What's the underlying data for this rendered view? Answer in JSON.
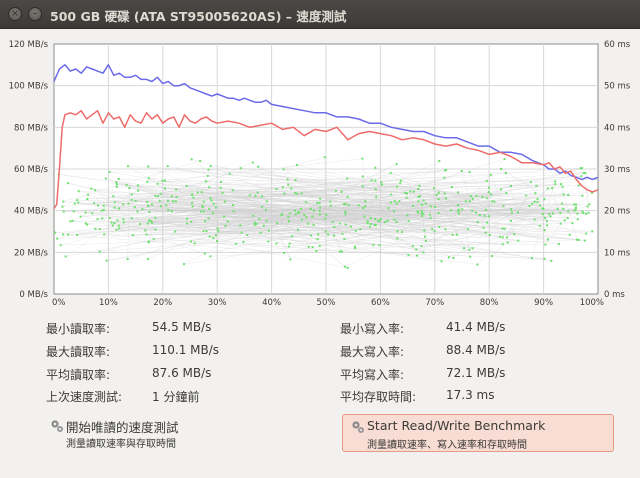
{
  "window": {
    "title": "500 GB 硬碟 (ATA ST95005620AS) – 速度測試"
  },
  "chart_data": {
    "type": "line",
    "x_ticks": [
      "0%",
      "10%",
      "20%",
      "30%",
      "40%",
      "50%",
      "60%",
      "70%",
      "80%",
      "90%",
      "100%"
    ],
    "y_left_ticks": [
      "0 MB/s",
      "20 MB/s",
      "40 MB/s",
      "60 MB/s",
      "80 MB/s",
      "100 MB/s",
      "120 MB/s"
    ],
    "y_right_ticks": [
      "0 ms",
      "10 ms",
      "20 ms",
      "30 ms",
      "40 ms",
      "50 ms",
      "60 ms"
    ],
    "x_range": [
      0,
      100
    ],
    "y_left_range": [
      0,
      120
    ],
    "y_right_range": [
      0,
      60
    ],
    "grid": true,
    "colors": {
      "read": "#6b6bea",
      "write": "#ee6b6b",
      "access": "#6de06d",
      "access_lines": "#cfcfcf"
    },
    "series": [
      {
        "role": "read",
        "axis": "left",
        "x": [
          0,
          1,
          2,
          3,
          4,
          5,
          6,
          7,
          8,
          9,
          10,
          11,
          12,
          13,
          14,
          15,
          16,
          17,
          18,
          19,
          20,
          21,
          22,
          23,
          24,
          25,
          26,
          27,
          28,
          29,
          30,
          31,
          32,
          33,
          34,
          35,
          36,
          37,
          38,
          39,
          40,
          42,
          44,
          46,
          48,
          50,
          52,
          54,
          56,
          58,
          60,
          62,
          64,
          66,
          68,
          70,
          72,
          74,
          76,
          78,
          80,
          82,
          84,
          86,
          88,
          90,
          91,
          92,
          93,
          94,
          95,
          96,
          97,
          98,
          99,
          100
        ],
        "y": [
          102,
          108,
          110,
          107,
          108,
          106,
          109,
          108,
          107,
          106,
          110,
          105,
          106,
          104,
          104,
          105,
          103,
          103,
          102,
          104,
          101,
          102,
          100,
          100,
          101,
          99,
          98,
          97,
          96,
          95,
          96,
          95,
          94,
          94,
          93,
          94,
          93,
          92,
          92,
          93,
          91,
          90,
          89,
          88,
          87,
          87,
          85,
          85,
          84,
          82,
          82,
          80,
          79,
          78,
          78,
          76,
          75,
          75,
          73,
          71,
          71,
          68,
          68,
          67,
          64,
          62,
          60,
          60,
          58,
          59,
          57,
          56,
          55,
          56,
          55,
          56
        ]
      },
      {
        "role": "write",
        "axis": "left",
        "x": [
          0,
          0.5,
          1,
          1.5,
          2,
          3,
          4,
          5,
          6,
          7,
          8,
          9,
          10,
          11,
          12,
          13,
          14,
          15,
          16,
          17,
          18,
          19,
          20,
          21,
          22,
          23,
          24,
          25,
          26,
          27,
          28,
          29,
          30,
          32,
          34,
          36,
          38,
          40,
          42,
          44,
          46,
          48,
          50,
          52,
          54,
          56,
          58,
          60,
          62,
          64,
          66,
          68,
          70,
          72,
          74,
          76,
          78,
          80,
          82,
          84,
          86,
          88,
          90,
          91,
          92,
          93,
          94,
          95,
          96,
          97,
          98,
          99,
          100
        ],
        "y": [
          41,
          43,
          60,
          80,
          86,
          87,
          86,
          88,
          84,
          86,
          88,
          82,
          87,
          84,
          85,
          80,
          86,
          83,
          82,
          87,
          84,
          86,
          82,
          84,
          85,
          80,
          86,
          83,
          82,
          84,
          85,
          83,
          82,
          83,
          82,
          80,
          81,
          82,
          79,
          80,
          76,
          79,
          78,
          80,
          74,
          77,
          78,
          77,
          76,
          74,
          75,
          74,
          72,
          71,
          72,
          70,
          69,
          67,
          68,
          66,
          63,
          63,
          62,
          63,
          60,
          61,
          58,
          59,
          55,
          52,
          50,
          49,
          50
        ]
      }
    ]
  },
  "stats": {
    "left": [
      {
        "label": "最小讀取率:",
        "value": "54.5 MB/s"
      },
      {
        "label": "最大讀取率:",
        "value": "110.1 MB/s"
      },
      {
        "label": "平均讀取率:",
        "value": "87.6 MB/s"
      },
      {
        "label": "上次速度測試:",
        "value": "1 分鐘前"
      }
    ],
    "right": [
      {
        "label": "最小寫入率:",
        "value": "41.4 MB/s"
      },
      {
        "label": "最大寫入率:",
        "value": "88.4 MB/s"
      },
      {
        "label": "平均寫入率:",
        "value": "72.1 MB/s"
      },
      {
        "label": "平均存取時間:",
        "value": "17.3 ms"
      }
    ]
  },
  "buttons": {
    "read_only": {
      "title": "開始唯讀的速度測試",
      "subtitle": "測量讀取速率與存取時間",
      "icon": "gears-icon"
    },
    "read_write": {
      "title": "Start Read/Write Benchmark",
      "subtitle": "測量讀取速率、寫入速率和存取時間",
      "icon": "gears-icon"
    }
  }
}
